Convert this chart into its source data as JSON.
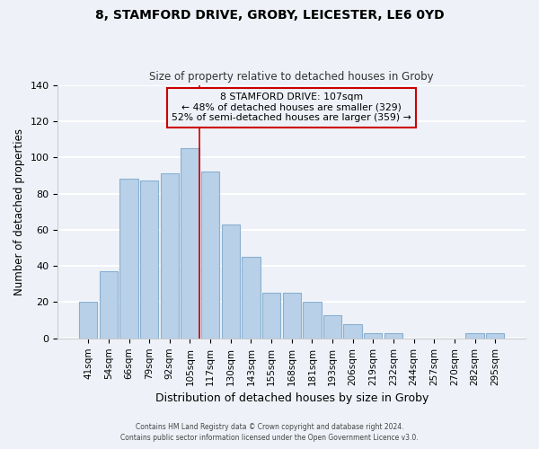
{
  "title": "8, STAMFORD DRIVE, GROBY, LEICESTER, LE6 0YD",
  "subtitle": "Size of property relative to detached houses in Groby",
  "xlabel": "Distribution of detached houses by size in Groby",
  "ylabel": "Number of detached properties",
  "bar_labels": [
    "41sqm",
    "54sqm",
    "66sqm",
    "79sqm",
    "92sqm",
    "105sqm",
    "117sqm",
    "130sqm",
    "143sqm",
    "155sqm",
    "168sqm",
    "181sqm",
    "193sqm",
    "206sqm",
    "219sqm",
    "232sqm",
    "244sqm",
    "257sqm",
    "270sqm",
    "282sqm",
    "295sqm"
  ],
  "bar_values": [
    20,
    37,
    88,
    87,
    91,
    105,
    92,
    63,
    45,
    25,
    25,
    20,
    13,
    8,
    3,
    3,
    0,
    0,
    0,
    3,
    3
  ],
  "bar_color": "#b8d0e8",
  "bar_edge_color": "#8ab0d0",
  "vline_index": 5,
  "vline_color": "#cc0000",
  "annotation_title": "8 STAMFORD DRIVE: 107sqm",
  "annotation_line1": "← 48% of detached houses are smaller (329)",
  "annotation_line2": "52% of semi-detached houses are larger (359) →",
  "annotation_box_edge": "#cc0000",
  "ylim": [
    0,
    140
  ],
  "yticks": [
    0,
    20,
    40,
    60,
    80,
    100,
    120,
    140
  ],
  "footer1": "Contains HM Land Registry data © Crown copyright and database right 2024.",
  "footer2": "Contains public sector information licensed under the Open Government Licence v3.0.",
  "background_color": "#eef2f8",
  "grid_color": "#ffffff"
}
